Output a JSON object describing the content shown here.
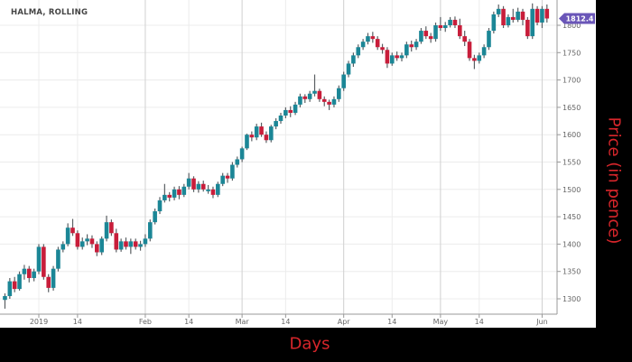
{
  "chart_data": {
    "type": "candlestick",
    "title": "HALMA, ROLLING",
    "xlabel": "Days",
    "ylabel": "Price (in pence)",
    "ylim": [
      1280,
      1850
    ],
    "y_ticks": [
      1300,
      1350,
      1400,
      1450,
      1500,
      1550,
      1600,
      1650,
      1700,
      1750,
      1800
    ],
    "x_ticks": [
      {
        "date": "2019-01-02",
        "label": "2019"
      },
      {
        "date": "2019-01-14",
        "label": "14"
      },
      {
        "date": "2019-02-01",
        "label": "Feb"
      },
      {
        "date": "2019-02-14",
        "label": "14"
      },
      {
        "date": "2019-03-01",
        "label": "Mar"
      },
      {
        "date": "2019-03-14",
        "label": "14"
      },
      {
        "date": "2019-04-01",
        "label": "Apr"
      },
      {
        "date": "2019-04-15",
        "label": "14"
      },
      {
        "date": "2019-05-01",
        "label": "May"
      },
      {
        "date": "2019-05-14",
        "label": "14"
      },
      {
        "date": "2019-06-03",
        "label": "Jun"
      }
    ],
    "last_price": "1812.4",
    "grid": true,
    "y_axis_position": "right",
    "colors": {
      "up": "#1b8696",
      "down": "#c81d3a",
      "last_price_badge": "#6a56b8",
      "axis_title": "#d8262b"
    },
    "candles_columns": [
      "date",
      "open",
      "high",
      "low",
      "close"
    ],
    "candles": [
      [
        "2018-12-19",
        1298,
        1310,
        1282,
        1305
      ],
      [
        "2018-12-20",
        1305,
        1338,
        1300,
        1332
      ],
      [
        "2018-12-21",
        1332,
        1340,
        1312,
        1318
      ],
      [
        "2018-12-24",
        1318,
        1350,
        1315,
        1345
      ],
      [
        "2018-12-27",
        1345,
        1362,
        1335,
        1355
      ],
      [
        "2018-12-28",
        1355,
        1360,
        1330,
        1338
      ],
      [
        "2018-12-31",
        1338,
        1355,
        1332,
        1350
      ],
      [
        "2019-01-02",
        1350,
        1400,
        1345,
        1395
      ],
      [
        "2019-01-03",
        1395,
        1400,
        1335,
        1340
      ],
      [
        "2019-01-04",
        1340,
        1345,
        1312,
        1320
      ],
      [
        "2019-01-07",
        1320,
        1360,
        1315,
        1355
      ],
      [
        "2019-01-08",
        1355,
        1395,
        1350,
        1390
      ],
      [
        "2019-01-09",
        1390,
        1405,
        1385,
        1400
      ],
      [
        "2019-01-10",
        1400,
        1438,
        1396,
        1430
      ],
      [
        "2019-01-11",
        1430,
        1446,
        1415,
        1420
      ],
      [
        "2019-01-14",
        1420,
        1425,
        1390,
        1395
      ],
      [
        "2019-01-15",
        1395,
        1412,
        1390,
        1405
      ],
      [
        "2019-01-16",
        1405,
        1418,
        1398,
        1410
      ],
      [
        "2019-01-17",
        1410,
        1416,
        1393,
        1400
      ],
      [
        "2019-01-18",
        1400,
        1405,
        1378,
        1385
      ],
      [
        "2019-01-21",
        1385,
        1414,
        1380,
        1410
      ],
      [
        "2019-01-22",
        1410,
        1452,
        1405,
        1440
      ],
      [
        "2019-01-23",
        1440,
        1445,
        1415,
        1420
      ],
      [
        "2019-01-24",
        1420,
        1428,
        1385,
        1390
      ],
      [
        "2019-01-25",
        1390,
        1410,
        1386,
        1405
      ],
      [
        "2019-01-28",
        1405,
        1412,
        1390,
        1395
      ],
      [
        "2019-01-29",
        1395,
        1410,
        1382,
        1405
      ],
      [
        "2019-01-30",
        1405,
        1410,
        1390,
        1395
      ],
      [
        "2019-01-31",
        1395,
        1406,
        1388,
        1400
      ],
      [
        "2019-02-01",
        1400,
        1418,
        1395,
        1410
      ],
      [
        "2019-02-04",
        1410,
        1445,
        1405,
        1440
      ],
      [
        "2019-02-05",
        1440,
        1465,
        1436,
        1460
      ],
      [
        "2019-02-06",
        1460,
        1486,
        1455,
        1480
      ],
      [
        "2019-02-07",
        1480,
        1510,
        1476,
        1490
      ],
      [
        "2019-02-08",
        1490,
        1495,
        1478,
        1485
      ],
      [
        "2019-02-11",
        1485,
        1505,
        1480,
        1500
      ],
      [
        "2019-02-12",
        1500,
        1506,
        1482,
        1490
      ],
      [
        "2019-02-13",
        1490,
        1510,
        1486,
        1505
      ],
      [
        "2019-02-14",
        1505,
        1530,
        1500,
        1520
      ],
      [
        "2019-02-15",
        1520,
        1524,
        1495,
        1500
      ],
      [
        "2019-02-18",
        1500,
        1515,
        1494,
        1510
      ],
      [
        "2019-02-19",
        1510,
        1516,
        1496,
        1500
      ],
      [
        "2019-02-20",
        1500,
        1508,
        1492,
        1500
      ],
      [
        "2019-02-21",
        1500,
        1505,
        1484,
        1490
      ],
      [
        "2019-02-22",
        1490,
        1514,
        1486,
        1510
      ],
      [
        "2019-02-25",
        1510,
        1530,
        1506,
        1525
      ],
      [
        "2019-02-26",
        1525,
        1530,
        1512,
        1520
      ],
      [
        "2019-02-27",
        1520,
        1550,
        1516,
        1545
      ],
      [
        "2019-02-28",
        1545,
        1560,
        1540,
        1555
      ],
      [
        "2019-03-01",
        1555,
        1578,
        1550,
        1575
      ],
      [
        "2019-03-04",
        1575,
        1602,
        1572,
        1600
      ],
      [
        "2019-03-05",
        1600,
        1606,
        1588,
        1595
      ],
      [
        "2019-03-06",
        1595,
        1620,
        1590,
        1615
      ],
      [
        "2019-03-07",
        1615,
        1622,
        1596,
        1600
      ],
      [
        "2019-03-08",
        1600,
        1606,
        1585,
        1590
      ],
      [
        "2019-03-11",
        1590,
        1618,
        1586,
        1615
      ],
      [
        "2019-03-12",
        1615,
        1630,
        1610,
        1625
      ],
      [
        "2019-03-13",
        1625,
        1640,
        1620,
        1635
      ],
      [
        "2019-03-14",
        1635,
        1650,
        1630,
        1645
      ],
      [
        "2019-03-15",
        1645,
        1652,
        1632,
        1640
      ],
      [
        "2019-03-18",
        1640,
        1660,
        1636,
        1655
      ],
      [
        "2019-03-19",
        1655,
        1675,
        1650,
        1670
      ],
      [
        "2019-03-20",
        1670,
        1674,
        1658,
        1665
      ],
      [
        "2019-03-21",
        1665,
        1680,
        1660,
        1675
      ],
      [
        "2019-03-22",
        1675,
        1710,
        1670,
        1680
      ],
      [
        "2019-03-25",
        1680,
        1684,
        1660,
        1665
      ],
      [
        "2019-03-26",
        1665,
        1670,
        1652,
        1660
      ],
      [
        "2019-03-27",
        1660,
        1664,
        1645,
        1655
      ],
      [
        "2019-03-28",
        1655,
        1670,
        1650,
        1665
      ],
      [
        "2019-03-29",
        1665,
        1690,
        1660,
        1685
      ],
      [
        "2019-04-01",
        1685,
        1715,
        1680,
        1710
      ],
      [
        "2019-04-02",
        1710,
        1735,
        1705,
        1730
      ],
      [
        "2019-04-03",
        1730,
        1750,
        1724,
        1745
      ],
      [
        "2019-04-04",
        1745,
        1765,
        1740,
        1760
      ],
      [
        "2019-04-05",
        1760,
        1775,
        1755,
        1770
      ],
      [
        "2019-04-08",
        1770,
        1786,
        1765,
        1780
      ],
      [
        "2019-04-09",
        1780,
        1788,
        1768,
        1775
      ],
      [
        "2019-04-10",
        1775,
        1780,
        1755,
        1760
      ],
      [
        "2019-04-11",
        1760,
        1766,
        1748,
        1755
      ],
      [
        "2019-04-12",
        1755,
        1760,
        1722,
        1730
      ],
      [
        "2019-04-15",
        1730,
        1750,
        1726,
        1745
      ],
      [
        "2019-04-16",
        1745,
        1752,
        1735,
        1740
      ],
      [
        "2019-04-17",
        1740,
        1750,
        1734,
        1745
      ],
      [
        "2019-04-18",
        1745,
        1770,
        1740,
        1765
      ],
      [
        "2019-04-23",
        1765,
        1772,
        1752,
        1760
      ],
      [
        "2019-04-24",
        1760,
        1775,
        1755,
        1770
      ],
      [
        "2019-04-25",
        1770,
        1795,
        1766,
        1790
      ],
      [
        "2019-04-26",
        1790,
        1798,
        1775,
        1780
      ],
      [
        "2019-04-29",
        1780,
        1786,
        1768,
        1775
      ],
      [
        "2019-04-30",
        1775,
        1805,
        1770,
        1800
      ],
      [
        "2019-05-01",
        1800,
        1815,
        1790,
        1795
      ],
      [
        "2019-05-02",
        1795,
        1806,
        1788,
        1800
      ],
      [
        "2019-05-03",
        1800,
        1815,
        1796,
        1810
      ],
      [
        "2019-05-07",
        1810,
        1816,
        1795,
        1800
      ],
      [
        "2019-05-08",
        1800,
        1812,
        1775,
        1780
      ],
      [
        "2019-05-09",
        1780,
        1790,
        1762,
        1770
      ],
      [
        "2019-05-10",
        1770,
        1775,
        1735,
        1740
      ],
      [
        "2019-05-13",
        1740,
        1746,
        1720,
        1735
      ],
      [
        "2019-05-14",
        1735,
        1750,
        1730,
        1745
      ],
      [
        "2019-05-15",
        1745,
        1765,
        1740,
        1760
      ],
      [
        "2019-05-16",
        1760,
        1795,
        1755,
        1790
      ],
      [
        "2019-05-17",
        1790,
        1825,
        1785,
        1820
      ],
      [
        "2019-05-20",
        1820,
        1838,
        1815,
        1830
      ],
      [
        "2019-05-21",
        1830,
        1835,
        1795,
        1800
      ],
      [
        "2019-05-22",
        1800,
        1820,
        1796,
        1815
      ],
      [
        "2019-05-23",
        1815,
        1830,
        1805,
        1810
      ],
      [
        "2019-05-24",
        1810,
        1832,
        1806,
        1825
      ],
      [
        "2019-05-28",
        1825,
        1830,
        1800,
        1810
      ],
      [
        "2019-05-29",
        1810,
        1815,
        1775,
        1780
      ],
      [
        "2019-05-30",
        1780,
        1840,
        1775,
        1830
      ],
      [
        "2019-05-31",
        1830,
        1835,
        1800,
        1805
      ],
      [
        "2019-06-03",
        1805,
        1835,
        1795,
        1830
      ],
      [
        "2019-06-04",
        1830,
        1838,
        1805,
        1812.4
      ]
    ]
  }
}
